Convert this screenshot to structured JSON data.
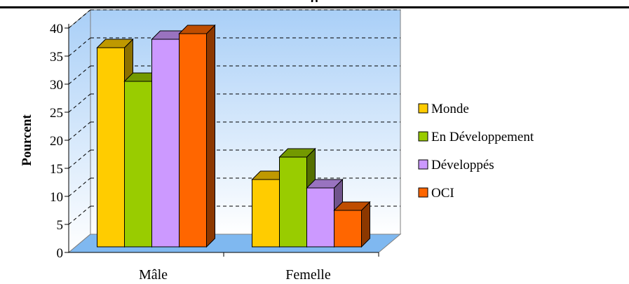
{
  "header": {
    "title": "g"
  },
  "colors": {
    "plot_background_top": "#a9cff7",
    "plot_background_bottom": "#ffffff",
    "floor": "#7fb8f0",
    "Monde": "#ffcc00",
    "En Développement": "#99cc00",
    "Développés": "#cc99ff",
    "OCI": "#ff6600"
  },
  "chart_data": {
    "type": "bar",
    "style": "3d-clustered-column",
    "categories": [
      "Mâle",
      "Femelle"
    ],
    "series": [
      {
        "name": "Monde",
        "values": [
          36.5,
          13.0
        ]
      },
      {
        "name": "En Développement",
        "values": [
          30.5,
          17.0
        ]
      },
      {
        "name": "Développés",
        "values": [
          38.0,
          11.5
        ]
      },
      {
        "name": "OCI",
        "values": [
          39.0,
          7.5
        ]
      }
    ],
    "title": "",
    "xlabel": "",
    "ylabel": "Pourcent",
    "ylim": [
      0,
      40
    ],
    "yticks": [
      "0",
      "5",
      "10",
      "15",
      "20",
      "25",
      "30",
      "35",
      "40"
    ],
    "grid": "dashed horizontal",
    "legend": "right"
  }
}
